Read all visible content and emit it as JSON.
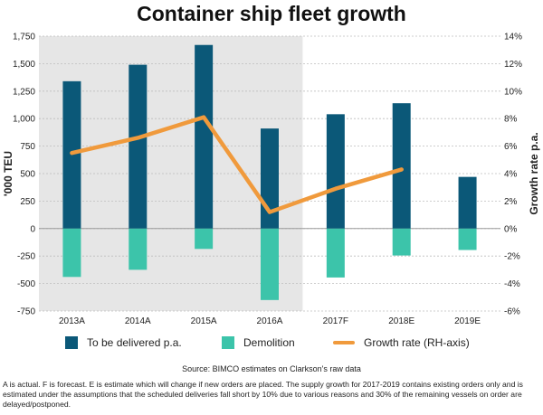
{
  "title": "Container ship fleet growth",
  "source": "Source: BIMCO estimates on Clarkson's raw data",
  "footnote": "A is actual. F is forecast. E is estimate which will change if new orders are placed. The supply growth for 2017-2019 contains existing orders only and is estimated under the assumptions that the scheduled deliveries fall short by 10% due to various reasons and 30% of the remaining vessels on order are delayed/postponed.",
  "colors": {
    "delivered": "#0b5878",
    "demolition": "#3cc4aa",
    "growth": "#f09a3c",
    "actual_shade": "#e6e6e6",
    "grid": "#bdbdbd"
  },
  "chart_data": {
    "type": "bar",
    "categories": [
      "2013A",
      "2014A",
      "2015A",
      "2016A",
      "2017F",
      "2018E",
      "2019E"
    ],
    "series": [
      {
        "name": "To be delivered p.a.",
        "type": "bar",
        "axis": "left",
        "values": [
          1340,
          1490,
          1670,
          910,
          1040,
          1140,
          470
        ]
      },
      {
        "name": "Demolition",
        "type": "bar",
        "axis": "left",
        "values": [
          -440,
          -375,
          -185,
          -650,
          -445,
          -245,
          -195
        ]
      },
      {
        "name": "Growth rate (RH-axis)",
        "type": "line",
        "axis": "right",
        "values": [
          5.5,
          6.6,
          8.1,
          1.2,
          2.9,
          4.3,
          null
        ]
      }
    ],
    "ylabel": "'000 TEU",
    "ylabel_right": "Growth rate p.a.",
    "ylim": [
      -750,
      1750
    ],
    "yticks": [
      -750,
      -500,
      -250,
      0,
      250,
      500,
      750,
      1000,
      1250,
      1500,
      1750
    ],
    "ytick_labels": [
      "-750",
      "-500",
      "-250",
      "0",
      "250",
      "500",
      "750",
      "1,000",
      "1,250",
      "1,500",
      "1,750"
    ],
    "ylim_right": [
      -6,
      14
    ],
    "yticks_right": [
      -6,
      -4,
      -2,
      0,
      2,
      4,
      6,
      8,
      10,
      12,
      14
    ],
    "ytick_labels_right": [
      "-6%",
      "-4%",
      "-2%",
      "0%",
      "2%",
      "4%",
      "6%",
      "8%",
      "10%",
      "12%",
      "14%"
    ],
    "shaded_categories": [
      "2013A",
      "2014A",
      "2015A",
      "2016A"
    ],
    "grid": true,
    "legend": "bottom"
  }
}
